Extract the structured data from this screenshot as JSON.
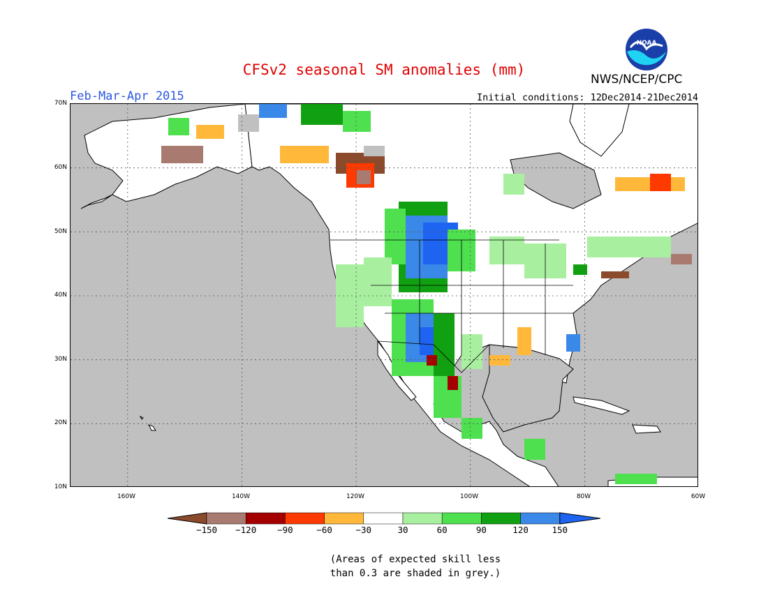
{
  "header": {
    "title": "CFSv2 seasonal SM anomalies (mm)",
    "period": "Feb-Mar-Apr 2015",
    "initial_conditions": "Initial conditions: 12Dec2014-21Dec2014",
    "agency": "NWS/NCEP/CPC",
    "logo_text": "NOAA"
  },
  "map": {
    "lat_labels": [
      "70N",
      "60N",
      "50N",
      "40N",
      "30N",
      "20N",
      "10N"
    ],
    "lon_labels": [
      "160W",
      "140W",
      "120W",
      "100W",
      "80W",
      "60W"
    ],
    "region": "North America",
    "ocean_color": "#c0c0c0",
    "land_color": "#ffffff"
  },
  "legend": {
    "labels": [
      "-150",
      "-120",
      "-90",
      "-60",
      "-30",
      "30",
      "60",
      "90",
      "120",
      "150"
    ],
    "colors": [
      "#8b4a2b",
      "#a87a70",
      "#a50000",
      "#ff3a00",
      "#ffb83a",
      "#ffffff",
      "#a8f0a0",
      "#4ee04e",
      "#11a011",
      "#3a88e8",
      "#1e64f0"
    ]
  },
  "note": {
    "line1": "(Areas of expected skill less",
    "line2": "than 0.3 are shaded in grey.)"
  }
}
